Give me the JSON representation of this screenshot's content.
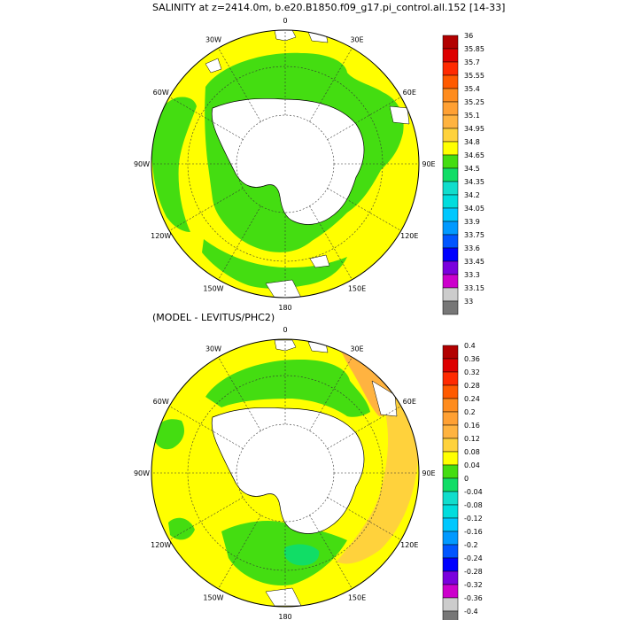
{
  "panel1": {
    "title": "SALINITY at z=2414.0m, b.e20.B1850.f09_g17.pi_control.all.152 [14-33]",
    "lon_labels": [
      "0",
      "30E",
      "60E",
      "90E",
      "120E",
      "150E",
      "180",
      "150W",
      "120W",
      "90W",
      "60W",
      "30W"
    ],
    "colorbar": {
      "labels": [
        "36",
        "35.85",
        "35.7",
        "35.55",
        "35.4",
        "35.25",
        "35.1",
        "34.95",
        "34.8",
        "34.65",
        "34.5",
        "34.35",
        "34.2",
        "34.05",
        "33.9",
        "33.75",
        "33.6",
        "33.45",
        "33.3",
        "33.15",
        "33"
      ],
      "colors": [
        "#b20000",
        "#dd0000",
        "#ff2a00",
        "#ff5a00",
        "#ff8c1e",
        "#ffa033",
        "#ffb340",
        "#ffd23c",
        "#ffff00",
        "#44dd11",
        "#11dd66",
        "#11ddcc",
        "#00dddd",
        "#00c8ff",
        "#0099ff",
        "#0055ff",
        "#0000ff",
        "#7a00dd",
        "#cc00cc",
        "#cccccc",
        "#777777"
      ]
    }
  },
  "panel2": {
    "title": "(MODEL - LEVITUS/PHC2)",
    "lon_labels": [
      "0",
      "30E",
      "60E",
      "90E",
      "120E",
      "150E",
      "180",
      "150W",
      "120W",
      "90W",
      "60W",
      "30W"
    ],
    "colorbar": {
      "labels": [
        "0.4",
        "0.36",
        "0.32",
        "0.28",
        "0.24",
        "0.2",
        "0.16",
        "0.12",
        "0.08",
        "0.04",
        "0",
        "-0.04",
        "-0.08",
        "-0.12",
        "-0.16",
        "-0.2",
        "-0.24",
        "-0.28",
        "-0.32",
        "-0.36",
        "-0.4"
      ],
      "colors": [
        "#b20000",
        "#dd0000",
        "#ff2a00",
        "#ff5a00",
        "#ff8c1e",
        "#ffa033",
        "#ffb340",
        "#ffd23c",
        "#ffff00",
        "#44dd11",
        "#11dd66",
        "#11ddcc",
        "#00dddd",
        "#00c8ff",
        "#0099ff",
        "#0055ff",
        "#0000ff",
        "#7a00dd",
        "#cc00cc",
        "#cccccc",
        "#777777"
      ]
    }
  },
  "colors": {
    "yellow": "#ffff00",
    "green": "#44dd11",
    "light_orange": "#ffd23c",
    "orange": "#ffb340",
    "teal": "#11dd66"
  }
}
